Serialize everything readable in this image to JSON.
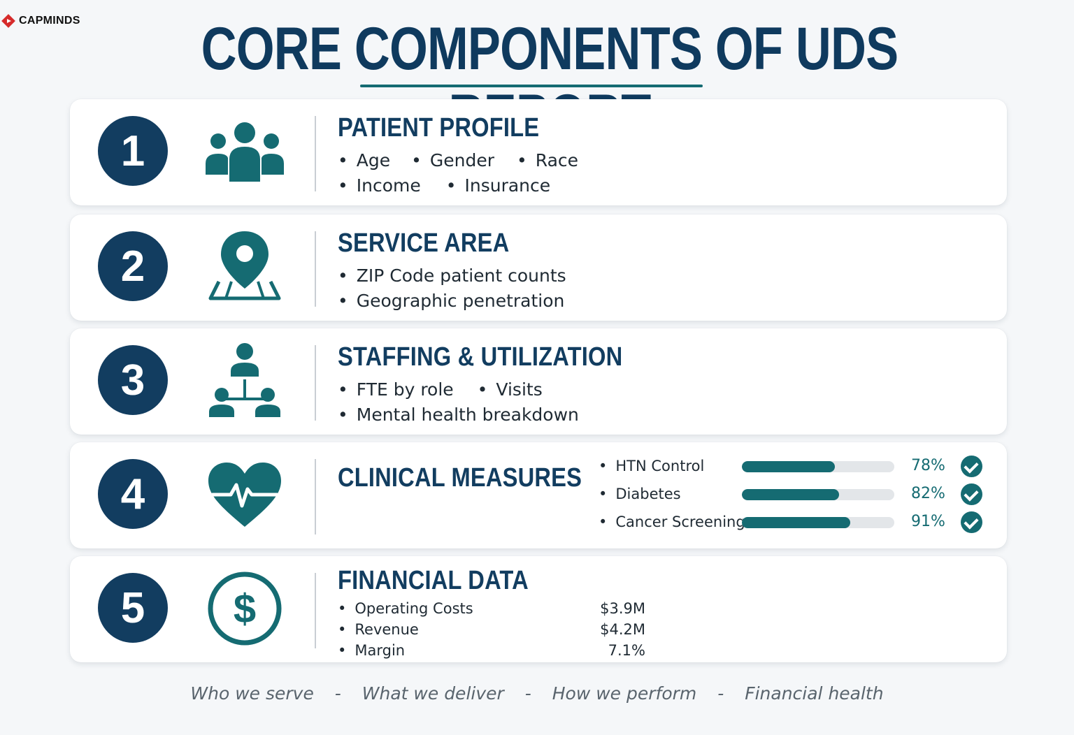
{
  "brand": {
    "name": "CAPMINDS"
  },
  "title": "CORE COMPONENTS OF UDS REPORT",
  "colors": {
    "navy": "#123d60",
    "teal": "#156b72",
    "accent": "#d62b2b"
  },
  "cards": [
    {
      "number": "1",
      "icon": "people-group-icon",
      "title": "PATIENT PROFILE",
      "bullet_lines": [
        [
          "Age",
          "Gender",
          "Race"
        ],
        [
          "Income",
          "Insurance"
        ]
      ]
    },
    {
      "number": "2",
      "icon": "map-pin-icon",
      "title": "SERVICE AREA",
      "bullet_lines": [
        [
          "ZIP Code patient counts"
        ],
        [
          "Geographic penetration"
        ]
      ]
    },
    {
      "number": "3",
      "icon": "org-chart-icon",
      "title": "STAFFING & UTILIZATION",
      "bullet_lines": [
        [
          "FTE by role",
          "Visits"
        ],
        [
          "Mental health breakdown"
        ]
      ]
    },
    {
      "number": "4",
      "icon": "heart-pulse-icon",
      "title": "CLINICAL MEASURES",
      "measures": [
        {
          "label": "HTN Control",
          "value": 78,
          "display": "78%"
        },
        {
          "label": "Diabetes",
          "value": 82,
          "display": "82%"
        },
        {
          "label": "Cancer Screening",
          "value": 91,
          "display": "91%"
        }
      ]
    },
    {
      "number": "5",
      "icon": "dollar-circle-icon",
      "title": "FINANCIAL DATA",
      "financials": [
        {
          "label": "Operating Costs",
          "value": "$3.9M"
        },
        {
          "label": "Revenue",
          "value": "$4.2M"
        },
        {
          "label": "Margin",
          "value": "7.1%"
        }
      ]
    }
  ],
  "footer": [
    "Who we serve",
    "What we deliver",
    "How we perform",
    "Financial health"
  ],
  "footer_separator": "-"
}
